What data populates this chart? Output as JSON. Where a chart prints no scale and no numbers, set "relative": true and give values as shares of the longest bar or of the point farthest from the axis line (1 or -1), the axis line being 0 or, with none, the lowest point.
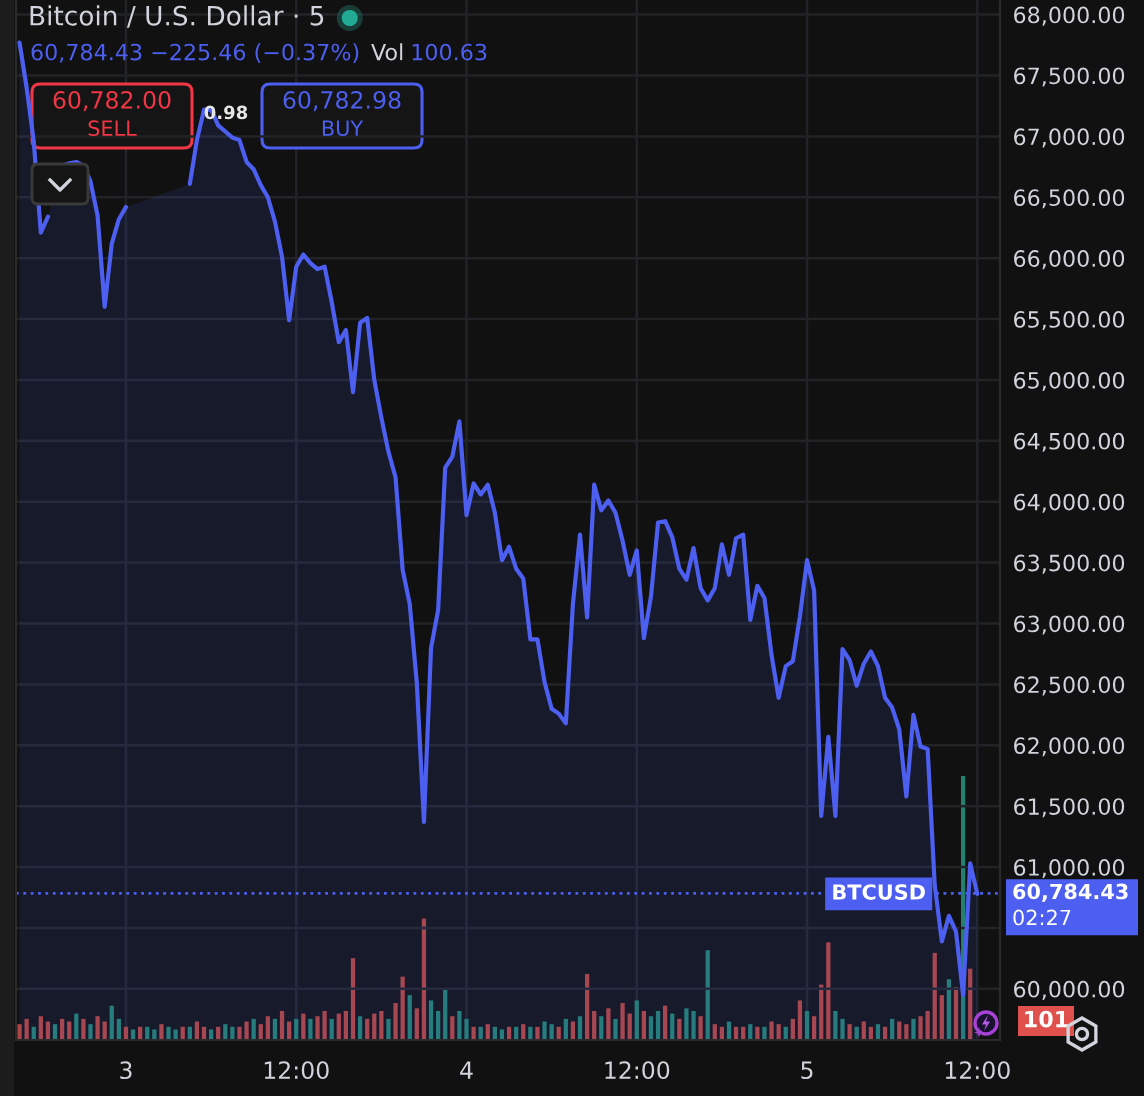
{
  "chart_data": [
    {
      "type": "bar",
      "relative": true,
      "grid": "x",
      "annotations": [
        "101"
      ],
      "categories": [
        null,
        null,
        null,
        null,
        null,
        null,
        null,
        null,
        null,
        null,
        null,
        null,
        null,
        null,
        null,
        "3",
        null,
        null,
        null,
        null,
        null,
        null,
        null,
        null,
        null,
        null,
        null,
        null,
        null,
        null,
        null,
        null,
        null,
        null,
        null,
        null,
        null,
        null,
        null,
        "12:00",
        null,
        null,
        null,
        null,
        null,
        null,
        null,
        null,
        null,
        null,
        null,
        null,
        null,
        null,
        null,
        null,
        null,
        null,
        null,
        null,
        null,
        null,
        null,
        "4",
        null,
        null,
        null,
        null,
        null,
        null,
        null,
        null,
        null,
        null,
        null,
        null,
        null,
        null,
        null,
        null,
        null,
        null,
        null,
        null,
        null,
        null,
        null,
        "12:00",
        null,
        null,
        null,
        null,
        null,
        null,
        null,
        null,
        null,
        null,
        null,
        null,
        null,
        null,
        null,
        null,
        null,
        null,
        null,
        null,
        null,
        null,
        null,
        "5",
        null,
        null,
        null,
        null,
        null,
        null,
        null,
        null,
        null,
        null,
        null,
        null,
        null,
        null,
        null,
        null,
        null,
        null,
        null,
        null,
        null,
        null,
        null,
        "12:00"
      ],
      "values": [
        0.06,
        0.08,
        0.05,
        0.09,
        0.07,
        0.06,
        0.08,
        0.07,
        0.1,
        0.08,
        0.06,
        0.09,
        0.07,
        0.13,
        0.08,
        0.05,
        0.04,
        0.05,
        0.05,
        0.04,
        0.06,
        0.05,
        0.04,
        0.05,
        0.05,
        0.07,
        0.05,
        0.04,
        0.05,
        0.06,
        0.05,
        0.05,
        0.07,
        0.08,
        0.06,
        0.09,
        0.08,
        0.11,
        0.07,
        0.08,
        0.1,
        0.08,
        0.09,
        0.11,
        0.08,
        0.1,
        0.11,
        0.31,
        0.09,
        0.08,
        0.1,
        0.11,
        0.08,
        0.14,
        0.24,
        0.17,
        0.12,
        0.46,
        0.15,
        0.11,
        0.19,
        0.09,
        0.11,
        0.08,
        0.05,
        0.05,
        0.06,
        0.05,
        0.04,
        0.05,
        0.05,
        0.06,
        0.05,
        0.05,
        0.07,
        0.06,
        0.05,
        0.08,
        0.07,
        0.09,
        0.25,
        0.11,
        0.09,
        0.12,
        0.08,
        0.14,
        0.1,
        0.15,
        0.11,
        0.09,
        0.11,
        0.13,
        0.1,
        0.08,
        0.12,
        0.11,
        0.09,
        0.34,
        0.06,
        0.05,
        0.07,
        0.05,
        0.05,
        0.06,
        0.05,
        0.05,
        0.07,
        0.06,
        0.05,
        0.08,
        0.15,
        0.11,
        0.09,
        0.21,
        0.37,
        0.11,
        0.08,
        0.06,
        0.05,
        0.07,
        0.05,
        0.06,
        0.05,
        0.08,
        0.07,
        0.06,
        0.08,
        0.09,
        0.11,
        0.33,
        0.17,
        0.23,
        0.2,
        1,
        0.27,
        null
      ],
      "colors": [
        "#b4443d",
        "#b4443d",
        "#23806f",
        "#b4443d",
        "#b4443d",
        "#23806f",
        "#b4443d",
        "#b4443d",
        "#23806f",
        "#b4443d",
        "#23806f",
        "#b4443d",
        "#b4443d",
        "#23806f",
        "#23806f",
        "#b4443d",
        "#23806f",
        "#b4443d",
        "#23806f",
        "#23806f",
        "#b4443d",
        "#23806f",
        "#23806f",
        "#b4443d",
        "#23806f",
        "#b4443d",
        "#b4443d",
        "#23806f",
        "#b4443d",
        "#23806f",
        "#23806f",
        "#b4443d",
        "#b4443d",
        "#23806f",
        "#b4443d",
        "#b4443d",
        "#23806f",
        "#b4443d",
        "#b4443d",
        "#23806f",
        "#b4443d",
        "#23806f",
        "#b4443d",
        "#b4443d",
        "#23806f",
        "#b4443d",
        "#b4443d",
        "#b4443d",
        "#23806f",
        "#b4443d",
        "#b4443d",
        "#b4443d",
        "#23806f",
        "#b4443d",
        "#b4443d",
        "#23806f",
        "#b4443d",
        "#b4443d",
        "#23806f",
        "#23806f",
        "#23806f",
        "#b4443d",
        "#23806f",
        "#23806f",
        "#b4443d",
        "#23806f",
        "#b4443d",
        "#23806f",
        "#23806f",
        "#b4443d",
        "#23806f",
        "#b4443d",
        "#23806f",
        "#b4443d",
        "#23806f",
        "#23806f",
        "#b4443d",
        "#23806f",
        "#b4443d",
        "#23806f",
        "#b4443d",
        "#b4443d",
        "#23806f",
        "#b4443d",
        "#23806f",
        "#b4443d",
        "#b4443d",
        "#23806f",
        "#b4443d",
        "#23806f",
        "#23806f",
        "#b4443d",
        "#23806f",
        "#b4443d",
        "#23806f",
        "#23806f",
        "#b4443d",
        "#23806f",
        "#b4443d",
        "#b4443d",
        "#23806f",
        "#b4443d",
        "#b4443d",
        "#23806f",
        "#b4443d",
        "#23806f",
        "#b4443d",
        "#b4443d",
        "#23806f",
        "#b4443d",
        "#b4443d",
        "#23806f",
        "#b4443d",
        "#b4443d",
        "#b4443d",
        "#23806f",
        "#23806f",
        "#b4443d",
        "#23806f",
        "#b4443d",
        "#b4443d",
        "#23806f",
        "#b4443d",
        "#23806f",
        "#b4443d",
        "#b4443d",
        "#23806f",
        "#b4443d",
        "#b4443d",
        "#b4443d",
        "#b4443d",
        "#23806f",
        "#b4443d",
        "#23806f",
        "#b4443d",
        "#b4443d"
      ]
    },
    {
      "type": "area",
      "title": "Bitcoin / U.S. Dollar · 5",
      "tick_labels": "y",
      "grid": "y",
      "annotations": [
        "60,784.43 −225.46 (−0.37%)",
        "Vol",
        "100.63",
        "60,782.00",
        "SELL",
        "0.98",
        "60,782.98",
        "BUY",
        "02:27"
      ],
      "categories": [
        null,
        null,
        null,
        null,
        null,
        null,
        null,
        null,
        null,
        null,
        null,
        null,
        null,
        null,
        null,
        null,
        null,
        null,
        null,
        null,
        null,
        null,
        null,
        null,
        null,
        null,
        null,
        null,
        null,
        null,
        null,
        null,
        null,
        null,
        null,
        null,
        null,
        null,
        null,
        null,
        null,
        null,
        null,
        null,
        null,
        null,
        null,
        null,
        null,
        null,
        null,
        null,
        null,
        null,
        null,
        null,
        null,
        null,
        null,
        null,
        null,
        null,
        null,
        null,
        null,
        null,
        null,
        null,
        null,
        null,
        null,
        null,
        null,
        null,
        null,
        null,
        null,
        null,
        null,
        null,
        null,
        null,
        null,
        null,
        null,
        null,
        null,
        null,
        null,
        null,
        null,
        null,
        null,
        null,
        null,
        null,
        null,
        null,
        null,
        null,
        null,
        null,
        null,
        null,
        null,
        null,
        null,
        null,
        null,
        null,
        null,
        null,
        null,
        null,
        null,
        null,
        null,
        null,
        null,
        null,
        null,
        null,
        null,
        null,
        null,
        null,
        null,
        null,
        null,
        null,
        null,
        null,
        null,
        null,
        null,
        null
      ],
      "series": [
        {
          "name": "BTCUSD",
          "color": "#4c5ff0",
          "values": [
            67770,
            67400,
            66960,
            66210,
            66340,
            null,
            66760,
            66780,
            66790,
            66760,
            66630,
            66350,
            65600,
            66120,
            66320,
            66420,
            null,
            null,
            null,
            null,
            null,
            null,
            null,
            null,
            66610,
            66970,
            67220,
            67220,
            67090,
            67040,
            66990,
            66970,
            66790,
            66730,
            66600,
            66500,
            66300,
            66010,
            65490,
            65930,
            66030,
            65960,
            65910,
            65930,
            65640,
            65310,
            65410,
            64900,
            65470,
            65510,
            65000,
            64690,
            64410,
            64200,
            63440,
            63160,
            62510,
            61370,
            62800,
            63110,
            64280,
            64370,
            64660,
            63890,
            64150,
            64060,
            64140,
            63910,
            63520,
            63630,
            63450,
            63370,
            62870,
            62870,
            62520,
            62300,
            62260,
            62180,
            63160,
            63730,
            63050,
            64140,
            63930,
            64010,
            63910,
            63680,
            63400,
            63600,
            62880,
            63220,
            63830,
            63840,
            63710,
            63450,
            63360,
            63620,
            63290,
            63190,
            63290,
            63650,
            63400,
            63700,
            63730,
            63030,
            63310,
            63210,
            62740,
            62390,
            62650,
            62690,
            63060,
            63520,
            63270,
            61420,
            62070,
            61420,
            62790,
            62700,
            62490,
            62670,
            62770,
            62650,
            62390,
            62310,
            62130,
            61580,
            62250,
            61990,
            61970,
            60850,
            60390,
            60600,
            60470,
            59950,
            61030,
            60780
          ]
        }
      ],
      "ylim": [
        59580,
        68120
      ],
      "yticks": [
        {
          "value": 60000,
          "label": "60,000.00"
        },
        {
          "value": 60500,
          "label": null
        },
        {
          "value": 61000,
          "label": "61,000.00"
        },
        {
          "value": 61500,
          "label": "61,500.00"
        },
        {
          "value": 62000,
          "label": "62,000.00"
        },
        {
          "value": 62500,
          "label": "62,500.00"
        },
        {
          "value": 63000,
          "label": "63,000.00"
        },
        {
          "value": 63500,
          "label": "63,500.00"
        },
        {
          "value": 64000,
          "label": "64,000.00"
        },
        {
          "value": 64500,
          "label": "64,500.00"
        },
        {
          "value": 65000,
          "label": "65,000.00"
        },
        {
          "value": 65500,
          "label": "65,500.00"
        },
        {
          "value": 66000,
          "label": "66,000.00"
        },
        {
          "value": 66500,
          "label": "66,500.00"
        },
        {
          "value": 67000,
          "label": "67,000.00"
        },
        {
          "value": 67500,
          "label": "67,500.00"
        },
        {
          "value": 68000,
          "label": "68,000.00"
        }
      ],
      "ref_lines": [
        {
          "axis": "y",
          "value": 60784.43,
          "label": "60,784.43",
          "color": "#4c5ff0",
          "line_style": "dotted"
        }
      ]
    }
  ]
}
